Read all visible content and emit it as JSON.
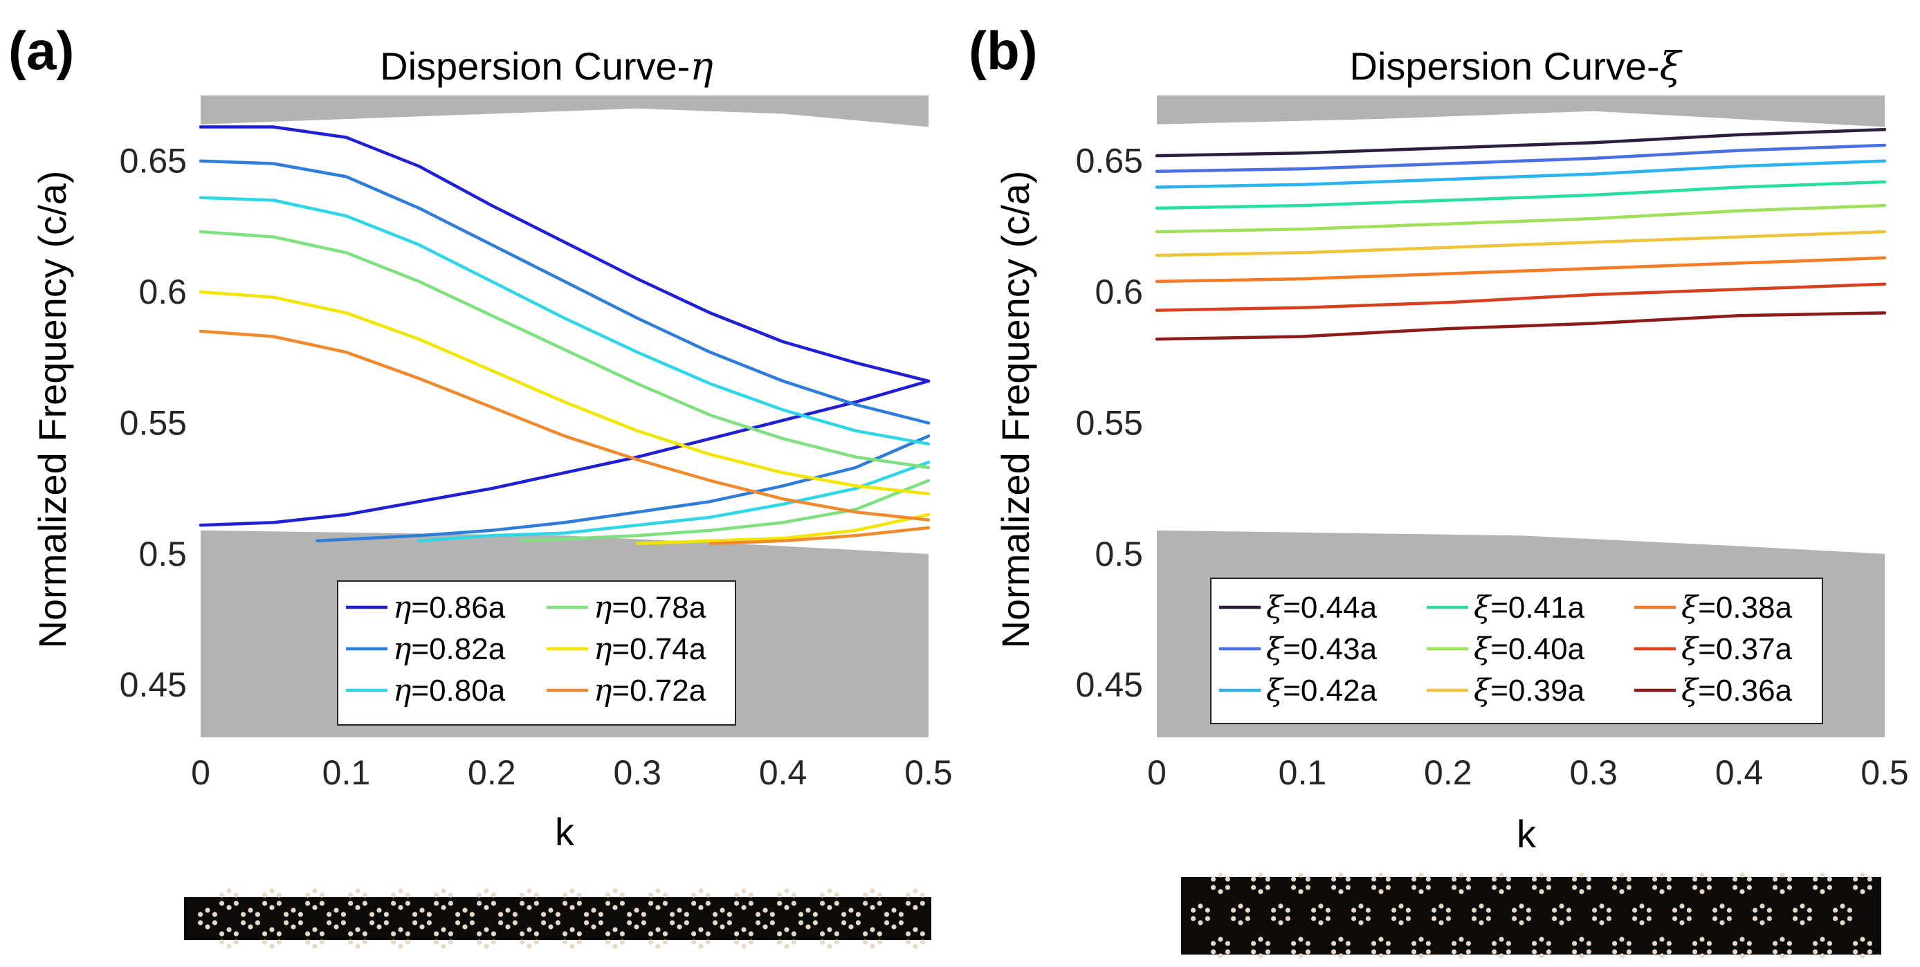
{
  "chart_data": [
    {
      "type": "line",
      "panel_label": "(a)",
      "title_text": "Dispersion Curve-",
      "title_symbol": "η",
      "xlabel": "k",
      "ylabel": "Normalized Frequency (c/a)",
      "xlim": [
        0,
        0.5
      ],
      "ylim": [
        0.43,
        0.675
      ],
      "xticks": [
        0,
        0.1,
        0.2,
        0.3,
        0.4,
        0.5
      ],
      "xtick_labels": [
        "0",
        "0.1",
        "0.2",
        "0.3",
        "0.4",
        "0.5"
      ],
      "yticks": [
        0.45,
        0.5,
        0.55,
        0.6,
        0.65
      ],
      "ytick_labels": [
        "0.45",
        "0.5",
        "0.55",
        "0.6",
        "0.65"
      ],
      "bands": {
        "upper_edge": [
          [
            0,
            0.664
          ],
          [
            0.15,
            0.667
          ],
          [
            0.3,
            0.67
          ],
          [
            0.4,
            0.668
          ],
          [
            0.5,
            0.663
          ]
        ],
        "lower_edge": [
          [
            0,
            0.509
          ],
          [
            0.25,
            0.507
          ],
          [
            0.4,
            0.503
          ],
          [
            0.5,
            0.5
          ]
        ],
        "color": "#b3b3b3"
      },
      "legend_position": "bottom",
      "legend_columns": 2,
      "series": [
        {
          "symbol": "η",
          "label": "=0.86a",
          "color": "#1f1fd6",
          "upper": [
            [
              0,
              0.663
            ],
            [
              0.05,
              0.663
            ],
            [
              0.1,
              0.659
            ],
            [
              0.15,
              0.648
            ],
            [
              0.2,
              0.633
            ],
            [
              0.25,
              0.619
            ],
            [
              0.3,
              0.605
            ],
            [
              0.35,
              0.592
            ],
            [
              0.4,
              0.581
            ],
            [
              0.45,
              0.573
            ],
            [
              0.5,
              0.566
            ]
          ],
          "lower": [
            [
              0,
              0.511
            ],
            [
              0.05,
              0.512
            ],
            [
              0.1,
              0.515
            ],
            [
              0.15,
              0.52
            ],
            [
              0.2,
              0.525
            ],
            [
              0.25,
              0.531
            ],
            [
              0.3,
              0.537
            ],
            [
              0.35,
              0.544
            ],
            [
              0.4,
              0.551
            ],
            [
              0.45,
              0.558
            ],
            [
              0.5,
              0.566
            ]
          ]
        },
        {
          "symbol": "η",
          "label": "=0.82a",
          "color": "#2f7ddb",
          "upper": [
            [
              0,
              0.65
            ],
            [
              0.05,
              0.649
            ],
            [
              0.1,
              0.644
            ],
            [
              0.15,
              0.632
            ],
            [
              0.2,
              0.618
            ],
            [
              0.25,
              0.604
            ],
            [
              0.3,
              0.59
            ],
            [
              0.35,
              0.577
            ],
            [
              0.4,
              0.566
            ],
            [
              0.45,
              0.557
            ],
            [
              0.5,
              0.55
            ]
          ],
          "lower": [
            [
              0.08,
              0.505
            ],
            [
              0.15,
              0.507
            ],
            [
              0.2,
              0.509
            ],
            [
              0.25,
              0.512
            ],
            [
              0.3,
              0.516
            ],
            [
              0.35,
              0.52
            ],
            [
              0.4,
              0.526
            ],
            [
              0.45,
              0.533
            ],
            [
              0.5,
              0.545
            ]
          ]
        },
        {
          "symbol": "η",
          "label": "=0.80a",
          "color": "#2fd7e6",
          "upper": [
            [
              0,
              0.636
            ],
            [
              0.05,
              0.635
            ],
            [
              0.1,
              0.629
            ],
            [
              0.15,
              0.618
            ],
            [
              0.2,
              0.604
            ],
            [
              0.25,
              0.59
            ],
            [
              0.3,
              0.577
            ],
            [
              0.35,
              0.565
            ],
            [
              0.4,
              0.555
            ],
            [
              0.45,
              0.547
            ],
            [
              0.5,
              0.542
            ]
          ],
          "lower": [
            [
              0.15,
              0.505
            ],
            [
              0.2,
              0.507
            ],
            [
              0.25,
              0.508
            ],
            [
              0.3,
              0.511
            ],
            [
              0.35,
              0.514
            ],
            [
              0.4,
              0.519
            ],
            [
              0.45,
              0.525
            ],
            [
              0.5,
              0.535
            ]
          ]
        },
        {
          "symbol": "η",
          "label": "=0.78a",
          "color": "#7ee07e",
          "upper": [
            [
              0,
              0.623
            ],
            [
              0.05,
              0.621
            ],
            [
              0.1,
              0.615
            ],
            [
              0.15,
              0.604
            ],
            [
              0.2,
              0.591
            ],
            [
              0.25,
              0.578
            ],
            [
              0.3,
              0.565
            ],
            [
              0.35,
              0.553
            ],
            [
              0.4,
              0.544
            ],
            [
              0.45,
              0.537
            ],
            [
              0.5,
              0.533
            ]
          ],
          "lower": [
            [
              0.22,
              0.505
            ],
            [
              0.3,
              0.507
            ],
            [
              0.35,
              0.509
            ],
            [
              0.4,
              0.512
            ],
            [
              0.45,
              0.517
            ],
            [
              0.5,
              0.528
            ]
          ]
        },
        {
          "symbol": "η",
          "label": "=0.74a",
          "color": "#f2e600",
          "upper": [
            [
              0,
              0.6
            ],
            [
              0.05,
              0.598
            ],
            [
              0.1,
              0.592
            ],
            [
              0.15,
              0.582
            ],
            [
              0.2,
              0.57
            ],
            [
              0.25,
              0.558
            ],
            [
              0.3,
              0.547
            ],
            [
              0.35,
              0.538
            ],
            [
              0.4,
              0.531
            ],
            [
              0.45,
              0.526
            ],
            [
              0.5,
              0.523
            ]
          ],
          "lower": [
            [
              0.3,
              0.504
            ],
            [
              0.35,
              0.505
            ],
            [
              0.4,
              0.506
            ],
            [
              0.45,
              0.509
            ],
            [
              0.5,
              0.515
            ]
          ]
        },
        {
          "symbol": "η",
          "label": "=0.72a",
          "color": "#f08a2c",
          "upper": [
            [
              0,
              0.585
            ],
            [
              0.05,
              0.583
            ],
            [
              0.1,
              0.577
            ],
            [
              0.15,
              0.567
            ],
            [
              0.2,
              0.556
            ],
            [
              0.25,
              0.545
            ],
            [
              0.3,
              0.536
            ],
            [
              0.35,
              0.528
            ],
            [
              0.4,
              0.521
            ],
            [
              0.45,
              0.516
            ],
            [
              0.5,
              0.513
            ]
          ],
          "lower": [
            [
              0.35,
              0.504
            ],
            [
              0.4,
              0.505
            ],
            [
              0.45,
              0.507
            ],
            [
              0.5,
              0.51
            ]
          ]
        }
      ]
    },
    {
      "type": "line",
      "panel_label": "(b)",
      "title_text": "Dispersion Curve-",
      "title_symbol": "ξ",
      "xlabel": "k",
      "ylabel": "Normalized Frequency (c/a)",
      "xlim": [
        0,
        0.5
      ],
      "ylim": [
        0.43,
        0.675
      ],
      "xticks": [
        0,
        0.1,
        0.2,
        0.3,
        0.4,
        0.5
      ],
      "xtick_labels": [
        "0",
        "0.1",
        "0.2",
        "0.3",
        "0.4",
        "0.5"
      ],
      "yticks": [
        0.45,
        0.5,
        0.55,
        0.6,
        0.65
      ],
      "ytick_labels": [
        "0.45",
        "0.5",
        "0.55",
        "0.6",
        "0.65"
      ],
      "bands": {
        "upper_edge": [
          [
            0,
            0.664
          ],
          [
            0.15,
            0.666
          ],
          [
            0.3,
            0.669
          ],
          [
            0.4,
            0.666
          ],
          [
            0.5,
            0.663
          ]
        ],
        "lower_edge": [
          [
            0,
            0.509
          ],
          [
            0.25,
            0.507
          ],
          [
            0.4,
            0.503
          ],
          [
            0.5,
            0.5
          ]
        ],
        "color": "#b3b3b3"
      },
      "legend_position": "bottom",
      "legend_columns": 3,
      "series": [
        {
          "symbol": "ξ",
          "label": "=0.44a",
          "color": "#2d1e3e",
          "upper": [
            [
              0,
              0.652
            ],
            [
              0.1,
              0.653
            ],
            [
              0.2,
              0.655
            ],
            [
              0.3,
              0.657
            ],
            [
              0.4,
              0.66
            ],
            [
              0.5,
              0.662
            ]
          ]
        },
        {
          "symbol": "ξ",
          "label": "=0.43a",
          "color": "#4a6fe3",
          "upper": [
            [
              0,
              0.646
            ],
            [
              0.1,
              0.647
            ],
            [
              0.2,
              0.649
            ],
            [
              0.3,
              0.651
            ],
            [
              0.4,
              0.654
            ],
            [
              0.5,
              0.656
            ]
          ]
        },
        {
          "symbol": "ξ",
          "label": "=0.42a",
          "color": "#2bb3f0",
          "upper": [
            [
              0,
              0.64
            ],
            [
              0.1,
              0.641
            ],
            [
              0.2,
              0.643
            ],
            [
              0.3,
              0.645
            ],
            [
              0.4,
              0.648
            ],
            [
              0.5,
              0.65
            ]
          ]
        },
        {
          "symbol": "ξ",
          "label": "=0.41a",
          "color": "#27e0a0",
          "upper": [
            [
              0,
              0.632
            ],
            [
              0.1,
              0.633
            ],
            [
              0.2,
              0.635
            ],
            [
              0.3,
              0.637
            ],
            [
              0.4,
              0.64
            ],
            [
              0.5,
              0.642
            ]
          ]
        },
        {
          "symbol": "ξ",
          "label": "=0.40a",
          "color": "#9ee05a",
          "upper": [
            [
              0,
              0.623
            ],
            [
              0.1,
              0.624
            ],
            [
              0.2,
              0.626
            ],
            [
              0.3,
              0.628
            ],
            [
              0.4,
              0.631
            ],
            [
              0.5,
              0.633
            ]
          ]
        },
        {
          "symbol": "ξ",
          "label": "=0.39a",
          "color": "#eec43a",
          "upper": [
            [
              0,
              0.614
            ],
            [
              0.1,
              0.615
            ],
            [
              0.2,
              0.617
            ],
            [
              0.3,
              0.619
            ],
            [
              0.4,
              0.621
            ],
            [
              0.5,
              0.623
            ]
          ]
        },
        {
          "symbol": "ξ",
          "label": "=0.38a",
          "color": "#f57c25",
          "upper": [
            [
              0,
              0.604
            ],
            [
              0.1,
              0.605
            ],
            [
              0.2,
              0.607
            ],
            [
              0.3,
              0.609
            ],
            [
              0.4,
              0.611
            ],
            [
              0.5,
              0.613
            ]
          ]
        },
        {
          "symbol": "ξ",
          "label": "=0.37a",
          "color": "#d6401e",
          "upper": [
            [
              0,
              0.593
            ],
            [
              0.1,
              0.594
            ],
            [
              0.2,
              0.596
            ],
            [
              0.3,
              0.599
            ],
            [
              0.4,
              0.601
            ],
            [
              0.5,
              0.603
            ]
          ]
        },
        {
          "symbol": "ξ",
          "label": "=0.36a",
          "color": "#8f1a1a",
          "upper": [
            [
              0,
              0.582
            ],
            [
              0.1,
              0.583
            ],
            [
              0.2,
              0.586
            ],
            [
              0.3,
              0.588
            ],
            [
              0.4,
              0.591
            ],
            [
              0.5,
              0.592
            ]
          ]
        }
      ]
    }
  ],
  "colors": {
    "background": "#ffffff",
    "band_gray": "#b3b3b3",
    "structure_dark": "#0d0b0a",
    "structure_hole": "#e6d9c8"
  }
}
